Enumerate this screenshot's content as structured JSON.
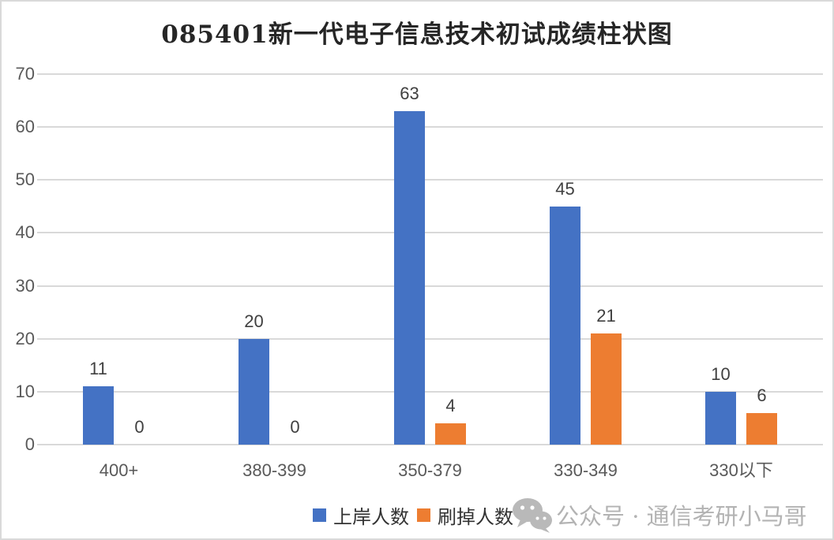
{
  "title": "085401新一代电子信息技术初试成绩柱状图",
  "chart_data": {
    "type": "bar",
    "title": "085401新一代电子信息技术初试成绩柱状图",
    "categories": [
      "400+",
      "380-399",
      "350-379",
      "330-349",
      "330以下"
    ],
    "series": [
      {
        "name": "上岸人数",
        "color": "#4472c4",
        "values": [
          11,
          20,
          63,
          45,
          10
        ]
      },
      {
        "name": "刷掉人数",
        "color": "#ed7d31",
        "values": [
          0,
          0,
          4,
          21,
          6
        ]
      }
    ],
    "xlabel": "",
    "ylabel": "",
    "ylim": [
      0,
      70
    ],
    "ytick_step": 10,
    "grid": true,
    "data_labels": true,
    "legend_position": "bottom"
  },
  "watermark": {
    "icon": "wechat-icon",
    "text": "公众号 · 通信考研小马哥"
  },
  "colors": {
    "grid": "#d9d9d9",
    "axis_text": "#595959",
    "data_label_text": "#404040",
    "title_text": "#262626",
    "watermark_text": "#b3b3b3",
    "series_blue": "#4472c4",
    "series_orange": "#ed7d31"
  }
}
